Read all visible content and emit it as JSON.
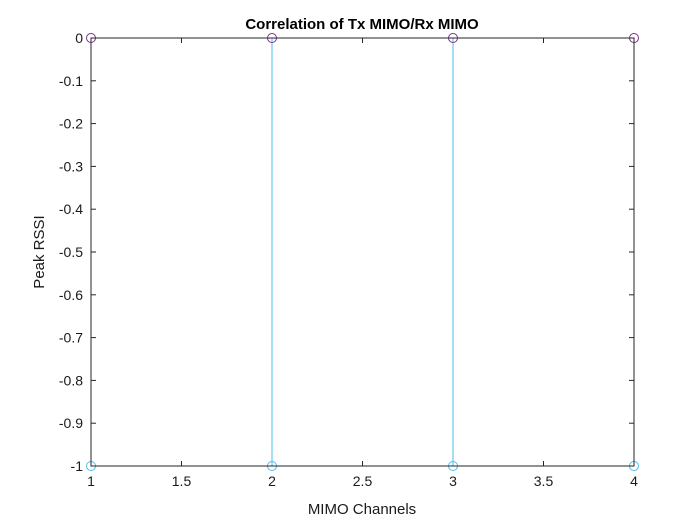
{
  "chart_data": {
    "type": "stem",
    "title": "Correlation of Tx MIMO/Rx MIMO",
    "xlabel": "MIMO Channels",
    "ylabel": "Peak RSSI",
    "xlim": [
      1,
      4
    ],
    "ylim": [
      -1,
      0
    ],
    "x_ticks": [
      "1",
      "1.5",
      "2",
      "2.5",
      "3",
      "3.5",
      "4"
    ],
    "x_tick_values": [
      1,
      1.5,
      2,
      2.5,
      3,
      3.5,
      4
    ],
    "y_ticks": [
      "0",
      "-0.1",
      "-0.2",
      "-0.3",
      "-0.4",
      "-0.5",
      "-0.6",
      "-0.7",
      "-0.8",
      "-0.9",
      "-1"
    ],
    "y_tick_values": [
      0,
      -0.1,
      -0.2,
      -0.3,
      -0.4,
      -0.5,
      -0.6,
      -0.7,
      -0.8,
      -0.9,
      -1
    ],
    "grid": false,
    "series": [
      {
        "x": [
          1,
          2,
          3,
          4
        ],
        "values": [
          -1,
          -1,
          -1,
          -1
        ],
        "baseline": 0,
        "color": "#4dbeee",
        "marker": "circle"
      },
      {
        "x": [
          1,
          2,
          3,
          4
        ],
        "values": [
          0,
          0,
          0,
          0
        ],
        "baseline": 0,
        "color": "#7e2f8e",
        "marker": "circle"
      }
    ],
    "colors": {
      "axes": "#262626",
      "baseline": "#262626"
    }
  }
}
